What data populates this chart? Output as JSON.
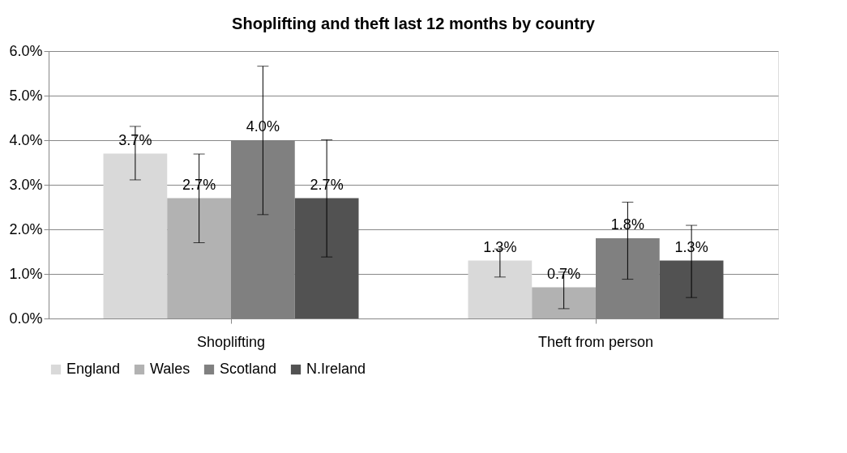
{
  "chart_data": {
    "type": "bar",
    "title": "Shoplifting and theft last 12 months by country",
    "categories": [
      "Shoplifting",
      "Theft from person"
    ],
    "series": [
      {
        "name": "England",
        "color": "#d9d9d9",
        "values": [
          3.7,
          1.3
        ],
        "value_labels": [
          "3.7%",
          "1.3%"
        ],
        "errors": [
          [
            3.11,
            4.31
          ],
          [
            0.93,
            1.56
          ]
        ]
      },
      {
        "name": "Wales",
        "color": "#b2b2b2",
        "values": [
          2.7,
          0.7
        ],
        "value_labels": [
          "2.7%",
          "0.7%"
        ],
        "errors": [
          [
            1.7,
            3.69
          ],
          [
            0.22,
            1.04
          ]
        ]
      },
      {
        "name": "Scotland",
        "color": "#808080",
        "values": [
          4.0,
          1.8
        ],
        "value_labels": [
          "4.0%",
          "1.8%"
        ],
        "errors": [
          [
            2.33,
            5.66
          ],
          [
            0.88,
            2.61
          ]
        ]
      },
      {
        "name": "N.Ireland",
        "color": "#525252",
        "values": [
          2.7,
          1.3
        ],
        "value_labels": [
          "2.7%",
          "1.3%"
        ],
        "errors": [
          [
            1.38,
            4.01
          ],
          [
            0.47,
            2.09
          ]
        ]
      }
    ],
    "ylim": [
      0,
      6
    ],
    "yticks": [
      {
        "value": 0,
        "label": "0.0%"
      },
      {
        "value": 1,
        "label": "1.0%"
      },
      {
        "value": 2,
        "label": "2.0%"
      },
      {
        "value": 3,
        "label": "3.0%"
      },
      {
        "value": 4,
        "label": "4.0%"
      },
      {
        "value": 5,
        "label": "5.0%"
      },
      {
        "value": 6,
        "label": "6.0%"
      }
    ],
    "grid": "y",
    "legend": "bottom"
  }
}
